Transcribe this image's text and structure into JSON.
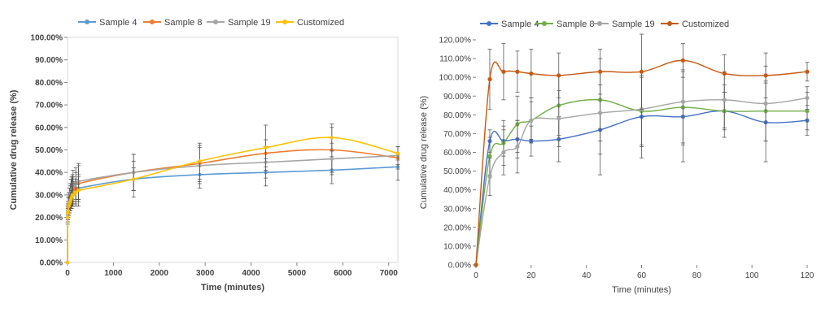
{
  "chart_data": [
    {
      "type": "line",
      "title": "",
      "xlabel": "Time (minutes)",
      "ylabel": "Cumulative drug release (%)",
      "xlim": [
        0,
        7200
      ],
      "ylim": [
        0,
        100
      ],
      "xticks": [
        "0",
        "1000",
        "2000",
        "3000",
        "4000",
        "5000",
        "6000",
        "7000"
      ],
      "yticks": [
        "0.00%",
        "10.00%",
        "20.00%",
        "30.00%",
        "40.00%",
        "50.00%",
        "60.00%",
        "70.00%",
        "80.00%",
        "90.00%",
        "100.00%"
      ],
      "legend": "top",
      "error_bars": true,
      "series": [
        {
          "name": "Sample 4",
          "color": "#5B9BD5",
          "x": [
            0,
            5,
            10,
            15,
            30,
            45,
            60,
            75,
            90,
            105,
            120,
            180,
            240,
            1440,
            2880,
            4320,
            5760,
            7200
          ],
          "y": [
            0,
            20,
            22,
            23,
            25,
            26,
            27,
            28,
            29,
            30,
            31,
            32,
            33,
            37,
            39,
            40,
            41,
            42.5
          ],
          "err": [
            0,
            2,
            3,
            3,
            4,
            4,
            4,
            4,
            5,
            5,
            5,
            5,
            5,
            5,
            6,
            6,
            6,
            6
          ]
        },
        {
          "name": "Sample 8",
          "color": "#ED7D31",
          "x": [
            0,
            5,
            10,
            15,
            30,
            45,
            60,
            75,
            90,
            105,
            120,
            180,
            240,
            1440,
            2880,
            4320,
            5760,
            7200
          ],
          "y": [
            0,
            22,
            24,
            25,
            27,
            28,
            29,
            30,
            31,
            32,
            32,
            33,
            35,
            40,
            44,
            48.5,
            50,
            46.5
          ],
          "err": [
            0,
            3,
            3,
            4,
            4,
            5,
            5,
            5,
            6,
            6,
            6,
            7,
            8,
            8,
            8,
            6,
            10,
            5
          ]
        },
        {
          "name": "Sample 19",
          "color": "#A5A5A5",
          "x": [
            0,
            5,
            10,
            15,
            30,
            45,
            60,
            75,
            90,
            105,
            120,
            180,
            240,
            1440,
            2880,
            4320,
            5760,
            7200
          ],
          "y": [
            0,
            21,
            23,
            25,
            27,
            28,
            30,
            31,
            32,
            33,
            34,
            35,
            36,
            40,
            43,
            44.5,
            46,
            47.5
          ],
          "err": [
            0,
            3,
            3,
            4,
            4,
            5,
            5,
            6,
            6,
            6,
            7,
            7,
            8,
            8,
            8,
            7,
            7,
            4
          ]
        },
        {
          "name": "Customized",
          "color": "#FFC000",
          "x": [
            0,
            5,
            10,
            15,
            30,
            45,
            60,
            75,
            90,
            105,
            120,
            180,
            240,
            1440,
            2880,
            4320,
            5760,
            7200
          ],
          "y": [
            0,
            20,
            22,
            23,
            25,
            26,
            27,
            28,
            29,
            30,
            30,
            31,
            32,
            37,
            45,
            51,
            55.5,
            48.5
          ],
          "err": [
            0,
            3,
            3,
            3,
            4,
            4,
            4,
            4,
            5,
            5,
            5,
            6,
            7,
            8,
            8,
            10,
            6,
            3
          ]
        }
      ]
    },
    {
      "type": "line",
      "title": "",
      "xlabel": "Time (minutes)",
      "ylabel": "Cumulative drug release (%)",
      "xlim": [
        0,
        120
      ],
      "ylim": [
        0,
        120
      ],
      "xticks": [
        "0",
        "20",
        "40",
        "60",
        "80",
        "100",
        "120"
      ],
      "yticks": [
        "0.00%",
        "10.00%",
        "20.00%",
        "30.00%",
        "40.00%",
        "50.00%",
        "60.00%",
        "70.00%",
        "80.00%",
        "90.00%",
        "100.00%",
        "110.00%",
        "120.00%"
      ],
      "legend": "top",
      "error_bars": true,
      "series": [
        {
          "name": "Sample 4",
          "color": "#4472C4",
          "x": [
            0,
            5,
            10,
            15,
            20,
            30,
            45,
            60,
            75,
            90,
            105,
            120
          ],
          "y": [
            0,
            66,
            66,
            67,
            66,
            67,
            72,
            79,
            79,
            82,
            76,
            77
          ],
          "err": [
            0,
            6,
            8,
            10,
            8,
            12,
            24,
            22,
            24,
            10,
            21,
            8
          ]
        },
        {
          "name": "Sample 8",
          "color": "#70AD47",
          "x": [
            0,
            5,
            10,
            15,
            20,
            30,
            45,
            60,
            75,
            90,
            105,
            120
          ],
          "y": [
            0,
            58,
            65,
            75,
            77,
            85,
            88,
            82,
            84,
            82,
            82,
            82
          ],
          "err": [
            0,
            10,
            12,
            15,
            12,
            16,
            22,
            18,
            20,
            14,
            16,
            10
          ]
        },
        {
          "name": "Sample 19",
          "color": "#A5A5A5",
          "x": [
            0,
            5,
            10,
            15,
            20,
            30,
            45,
            60,
            75,
            90,
            105,
            120
          ],
          "y": [
            0,
            47,
            60,
            63,
            77,
            78,
            81,
            83,
            87,
            88,
            86,
            89
          ],
          "err": [
            0,
            10,
            12,
            14,
            10,
            15,
            22,
            20,
            22,
            15,
            20,
            6
          ]
        },
        {
          "name": "Customized",
          "color": "#C55A11",
          "x": [
            0,
            5,
            10,
            15,
            20,
            30,
            45,
            60,
            75,
            90,
            105,
            120
          ],
          "y": [
            0,
            99,
            103,
            103,
            102,
            101,
            103,
            103,
            109,
            102,
            101,
            103
          ],
          "err": [
            0,
            16,
            15,
            11,
            13,
            12,
            12,
            20,
            9,
            10,
            12,
            5
          ]
        }
      ]
    }
  ]
}
